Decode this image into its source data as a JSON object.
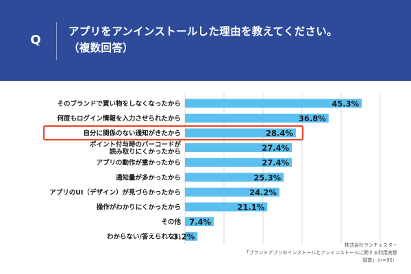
{
  "header": {
    "q_label": "Q",
    "title_line1": "アプリをアンインストールした理由を教えてください。",
    "title_line2": "（複数回答）"
  },
  "colors": {
    "header_bg": "#2e4b9a",
    "bar": "#5bc0f0",
    "highlight_box": "#e8472b",
    "grid": "#d9d9d9"
  },
  "chart_data": {
    "type": "bar",
    "orientation": "horizontal",
    "unit": "%",
    "categories": [
      "そのブランドで買い物をしなくなったから",
      "何度もログイン情報を入力させられたから",
      "自分に関係のない通知がきたから",
      "ポイント付与時のバーコードが読み取りにくかったから",
      "アプリの動作が重かったから",
      "通知量が多かったから",
      "アプリのUI（デザイン）が見づらかったから",
      "操作がわかりにくかったから",
      "その他",
      "わからない/答えられない"
    ],
    "category_lines": [
      [
        "そのブランドで買い物をしなくなったから"
      ],
      [
        "何度もログイン情報を入力させられたから"
      ],
      [
        "自分に関係のない通知がきたから"
      ],
      [
        "ポイント付与時のバーコードが",
        "読み取りにくかったから"
      ],
      [
        "アプリの動作が重かったから"
      ],
      [
        "通知量が多かったから"
      ],
      [
        "アプリのUI（デザイン）が見づらかったから"
      ],
      [
        "操作がわかりにくかったから"
      ],
      [
        "その他"
      ],
      [
        "わからない/答えられない"
      ]
    ],
    "values": [
      45.3,
      36.8,
      28.4,
      27.4,
      27.4,
      25.3,
      24.2,
      21.1,
      7.4,
      3.2
    ],
    "value_labels": [
      "45.3%",
      "36.8%",
      "28.4%",
      "27.4%",
      "27.4%",
      "25.3%",
      "24.2%",
      "21.1%",
      "7.4%",
      "3.2%"
    ],
    "highlighted_index": 2,
    "xlim": [
      0,
      50
    ],
    "grid": true,
    "legend": false
  },
  "source": {
    "line1": "株式会社ランチェスター",
    "line2": "「ブランドアプリのインストールとアンインストールに関する利用実態",
    "line3": "調査」（n=95）"
  }
}
